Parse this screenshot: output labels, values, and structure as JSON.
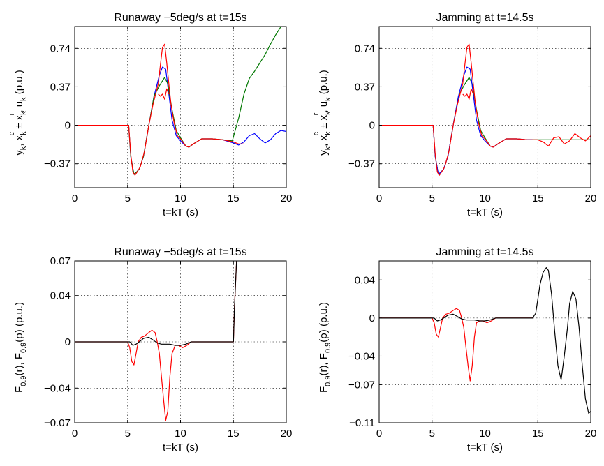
{
  "chart_data": [
    {
      "type": "line",
      "title": "Runaway −5deg/s at t=15s",
      "xlabel": "t=kT (s)",
      "ylabel_parts": [
        "y",
        "k",
        ", x",
        "k",
        "c",
        " ± x",
        "k",
        "r",
        ", u",
        "k",
        " (p.u.)"
      ],
      "xlim": [
        0,
        20
      ],
      "ylim": [
        -0.6,
        0.95
      ],
      "xticks": [
        0,
        5,
        10,
        15,
        20
      ],
      "xticklabels": [
        "0",
        "5",
        "10",
        "15",
        "20"
      ],
      "yticks": [
        -0.37,
        0,
        0.37,
        0.74
      ],
      "yticklabels": [
        "−0.37",
        "0",
        "0.37",
        "0.74"
      ],
      "grid": true,
      "series": [
        {
          "color": "#0000ff",
          "x": [
            0,
            5.1,
            5.3,
            5.6,
            5.85,
            6.1,
            6.5,
            7,
            7.5,
            8,
            8.3,
            8.6,
            8.9,
            9.2,
            9.6,
            10,
            10.5,
            10.8,
            11.2,
            12,
            13,
            14,
            15,
            15.5,
            16,
            16.5,
            17,
            17.5,
            18,
            18.5,
            19,
            19.5,
            20
          ],
          "y": [
            0,
            0,
            -0.3,
            -0.47,
            -0.45,
            -0.42,
            -0.3,
            0,
            0.28,
            0.48,
            0.56,
            0.54,
            0.3,
            0.05,
            -0.1,
            -0.15,
            -0.2,
            -0.21,
            -0.18,
            -0.13,
            -0.13,
            -0.14,
            -0.17,
            -0.19,
            -0.16,
            -0.1,
            -0.08,
            -0.13,
            -0.17,
            -0.14,
            -0.08,
            -0.05,
            -0.06
          ]
        },
        {
          "color": "#007700",
          "x": [
            0,
            5.1,
            5.3,
            5.6,
            5.85,
            6.1,
            6.5,
            7,
            7.5,
            8,
            8.5,
            8.8,
            9.2,
            9.6,
            10,
            10.5,
            10.8,
            11.2,
            12,
            13,
            14,
            14.9,
            15.5,
            16,
            16.5,
            17,
            17.5,
            18,
            18.5,
            19,
            19.5,
            20
          ],
          "y": [
            0,
            0,
            -0.3,
            -0.47,
            -0.45,
            -0.42,
            -0.3,
            0,
            0.28,
            0.38,
            0.46,
            0.4,
            0.15,
            -0.05,
            -0.12,
            -0.2,
            -0.21,
            -0.18,
            -0.13,
            -0.13,
            -0.14,
            -0.15,
            0.07,
            0.3,
            0.45,
            0.52,
            0.6,
            0.68,
            0.78,
            0.87,
            0.95,
            1.0
          ]
        },
        {
          "color": "#ff0000",
          "x": [
            0,
            5.1,
            5.3,
            5.5,
            5.7,
            5.9,
            6.2,
            6.6,
            7,
            7.4,
            7.7,
            7.9,
            8.1,
            8.3,
            8.5,
            8.7,
            8.9,
            9.1,
            9.4,
            9.7,
            10,
            10.5,
            10.8,
            11.2,
            12,
            13,
            14,
            15,
            15.5,
            16
          ],
          "y": [
            0,
            0,
            -0.28,
            -0.45,
            -0.48,
            -0.45,
            -0.4,
            -0.25,
            0,
            0.2,
            0.32,
            0.4,
            0.58,
            0.75,
            0.78,
            0.6,
            0.4,
            0.2,
            0.02,
            -0.1,
            -0.13,
            -0.2,
            -0.21,
            -0.18,
            -0.13,
            -0.13,
            -0.14,
            -0.16,
            -0.18,
            -0.18
          ]
        },
        {
          "color": "#ff0000",
          "x": [
            7.9,
            8.1,
            8.3,
            8.5,
            8.7,
            8.9
          ],
          "y": [
            0.3,
            0.28,
            0.3,
            0.25,
            0.35,
            0.3
          ]
        }
      ]
    },
    {
      "type": "line",
      "title": "Jamming at t=14.5s",
      "xlabel": "t=kT (s)",
      "ylabel_parts": [
        "y",
        "k",
        ", x",
        "k",
        "c",
        " ± x",
        "k",
        "r",
        ", u",
        "k",
        " (p.u.)"
      ],
      "xlim": [
        0,
        20
      ],
      "ylim": [
        -0.6,
        0.95
      ],
      "xticks": [
        0,
        5,
        10,
        15,
        20
      ],
      "xticklabels": [
        "0",
        "5",
        "10",
        "15",
        "20"
      ],
      "yticks": [
        -0.37,
        0,
        0.37,
        0.74
      ],
      "yticklabels": [
        "−0.37",
        "0",
        "0.37",
        "0.74"
      ],
      "grid": true,
      "series": [
        {
          "color": "#007700",
          "x": [
            0,
            5.1,
            5.3,
            5.6,
            5.85,
            6.1,
            6.5,
            7,
            7.5,
            8,
            8.5,
            8.8,
            9.2,
            9.6,
            10,
            10.5,
            10.8,
            11.2,
            12,
            13,
            14,
            14.5,
            20
          ],
          "y": [
            0,
            0,
            -0.3,
            -0.47,
            -0.45,
            -0.42,
            -0.3,
            0,
            0.28,
            0.38,
            0.46,
            0.4,
            0.15,
            -0.05,
            -0.12,
            -0.2,
            -0.21,
            -0.18,
            -0.13,
            -0.13,
            -0.14,
            -0.14,
            -0.14
          ]
        },
        {
          "color": "#0000ff",
          "x": [
            0,
            5.1,
            5.3,
            5.6,
            5.85,
            6.1,
            6.5,
            7,
            7.5,
            8,
            8.3,
            8.6,
            8.9,
            9.2,
            9.6,
            10,
            10.5,
            10.8,
            11.2,
            12,
            13,
            14,
            14.5
          ],
          "y": [
            0,
            0,
            -0.3,
            -0.47,
            -0.45,
            -0.42,
            -0.3,
            0,
            0.28,
            0.48,
            0.56,
            0.54,
            0.3,
            0.05,
            -0.1,
            -0.15,
            -0.2,
            -0.21,
            -0.18,
            -0.13,
            -0.13,
            -0.14,
            -0.14
          ]
        },
        {
          "color": "#ff0000",
          "x": [
            0,
            5.1,
            5.3,
            5.5,
            5.7,
            5.9,
            6.2,
            6.6,
            7,
            7.4,
            7.7,
            7.9,
            8.1,
            8.3,
            8.5,
            8.7,
            8.9,
            9.1,
            9.4,
            9.7,
            10,
            10.5,
            10.8,
            11.2,
            12,
            13,
            14,
            15,
            15.5,
            16,
            16.5,
            17,
            17.5,
            18,
            18.5,
            19,
            19.5,
            20
          ],
          "y": [
            0,
            0,
            -0.28,
            -0.45,
            -0.48,
            -0.45,
            -0.4,
            -0.25,
            0,
            0.2,
            0.32,
            0.4,
            0.58,
            0.75,
            0.78,
            0.6,
            0.4,
            0.2,
            0.02,
            -0.1,
            -0.13,
            -0.2,
            -0.21,
            -0.18,
            -0.13,
            -0.13,
            -0.14,
            -0.14,
            -0.16,
            -0.2,
            -0.12,
            -0.11,
            -0.18,
            -0.15,
            -0.08,
            -0.12,
            -0.15,
            -0.1
          ]
        },
        {
          "color": "#ff0000",
          "x": [
            7.9,
            8.1,
            8.3,
            8.5,
            8.7,
            8.9
          ],
          "y": [
            0.3,
            0.28,
            0.3,
            0.25,
            0.35,
            0.3
          ]
        }
      ]
    },
    {
      "type": "line",
      "title": "Runaway −5deg/s at t=15s",
      "xlabel": "t=kT (s)",
      "ylabel_parts": [
        "F",
        "0.9",
        "(r), F",
        "0.9",
        "(ρ) (p.u.)"
      ],
      "xlim": [
        0,
        20
      ],
      "ylim": [
        -0.07,
        0.07
      ],
      "xticks": [
        0,
        5,
        10,
        15,
        20
      ],
      "xticklabels": [
        "0",
        "5",
        "10",
        "15",
        "20"
      ],
      "yticks": [
        -0.07,
        -0.04,
        0,
        0.04,
        0.07
      ],
      "yticklabels": [
        "−0.07",
        "−0.04",
        "0",
        "0.04",
        "0.07"
      ],
      "grid": true,
      "series": [
        {
          "color": "#ff0000",
          "x": [
            0,
            5,
            5.2,
            5.4,
            5.6,
            5.8,
            6,
            6.3,
            6.6,
            7,
            7.3,
            7.6,
            7.8,
            8,
            8.2,
            8.4,
            8.6,
            8.8,
            9,
            9.2,
            9.5,
            9.8,
            10.2,
            10.6,
            11,
            15,
            15.1,
            15.3
          ],
          "y": [
            0,
            0,
            -0.005,
            -0.017,
            -0.02,
            -0.01,
            0,
            0.004,
            0.005,
            0.008,
            0.01,
            0.008,
            0,
            -0.01,
            -0.03,
            -0.05,
            -0.068,
            -0.06,
            -0.03,
            -0.01,
            -0.003,
            -0.003,
            -0.005,
            -0.003,
            0,
            0,
            0.03,
            0.07
          ]
        },
        {
          "color": "#000000",
          "x": [
            0,
            5.2,
            5.5,
            5.8,
            6.1,
            6.5,
            7,
            7.5,
            7.8,
            8.2,
            9,
            9.5,
            10,
            10.5,
            11,
            15,
            15.1,
            15.3
          ],
          "y": [
            0,
            0,
            -0.003,
            -0.002,
            0,
            0.003,
            0.004,
            0.001,
            -0.001,
            -0.002,
            -0.002,
            -0.003,
            -0.003,
            -0.002,
            0,
            0,
            0.03,
            0.07
          ]
        }
      ]
    },
    {
      "type": "line",
      "title": "Jamming at t=14.5s",
      "xlabel": "t=kT (s)",
      "ylabel_parts": [
        "F",
        "0.9",
        "(r), F",
        "0.9",
        "(ρ) (p.u.)"
      ],
      "xlim": [
        0,
        20
      ],
      "ylim": [
        -0.11,
        0.06
      ],
      "xticks": [
        0,
        5,
        10,
        15,
        20
      ],
      "xticklabels": [
        "0",
        "5",
        "10",
        "15",
        "20"
      ],
      "yticks": [
        -0.11,
        -0.07,
        -0.04,
        0,
        0.04
      ],
      "yticklabels": [
        "−0.11",
        "−0.07",
        "−0.04",
        "0",
        "0.04"
      ],
      "grid": true,
      "series": [
        {
          "color": "#ff0000",
          "x": [
            0,
            5,
            5.2,
            5.4,
            5.6,
            5.8,
            6,
            6.3,
            6.6,
            7,
            7.3,
            7.6,
            7.8,
            8,
            8.2,
            8.4,
            8.6,
            8.8,
            9,
            9.2,
            9.5,
            9.8,
            10.2,
            10.6,
            11,
            14.5
          ],
          "y": [
            0,
            0,
            -0.005,
            -0.017,
            -0.02,
            -0.01,
            0,
            0.004,
            0.005,
            0.008,
            0.01,
            0.008,
            0,
            -0.01,
            -0.03,
            -0.05,
            -0.066,
            -0.05,
            -0.02,
            -0.005,
            -0.003,
            -0.003,
            -0.005,
            -0.003,
            0,
            0
          ]
        },
        {
          "color": "#000000",
          "x": [
            0,
            5.2,
            5.5,
            5.8,
            6.1,
            6.5,
            7,
            7.5,
            7.8,
            8.2,
            9,
            9.5,
            10,
            10.5,
            11,
            14.5,
            14.8,
            15,
            15.2,
            15.5,
            15.8,
            16,
            16.3,
            16.6,
            16.9,
            17.2,
            17.5,
            17.8,
            18,
            18.3,
            18.6,
            18.9,
            19.2,
            19.5,
            19.8,
            20
          ],
          "y": [
            0,
            0,
            -0.003,
            -0.002,
            0,
            0.003,
            0.004,
            0.001,
            -0.001,
            -0.002,
            -0.002,
            -0.003,
            -0.003,
            -0.002,
            0,
            0,
            0.005,
            0.02,
            0.035,
            0.048,
            0.053,
            0.05,
            0.025,
            -0.015,
            -0.05,
            -0.065,
            -0.04,
            -0.01,
            0.015,
            0.028,
            0.02,
            -0.01,
            -0.05,
            -0.085,
            -0.1,
            -0.098
          ]
        }
      ]
    }
  ]
}
